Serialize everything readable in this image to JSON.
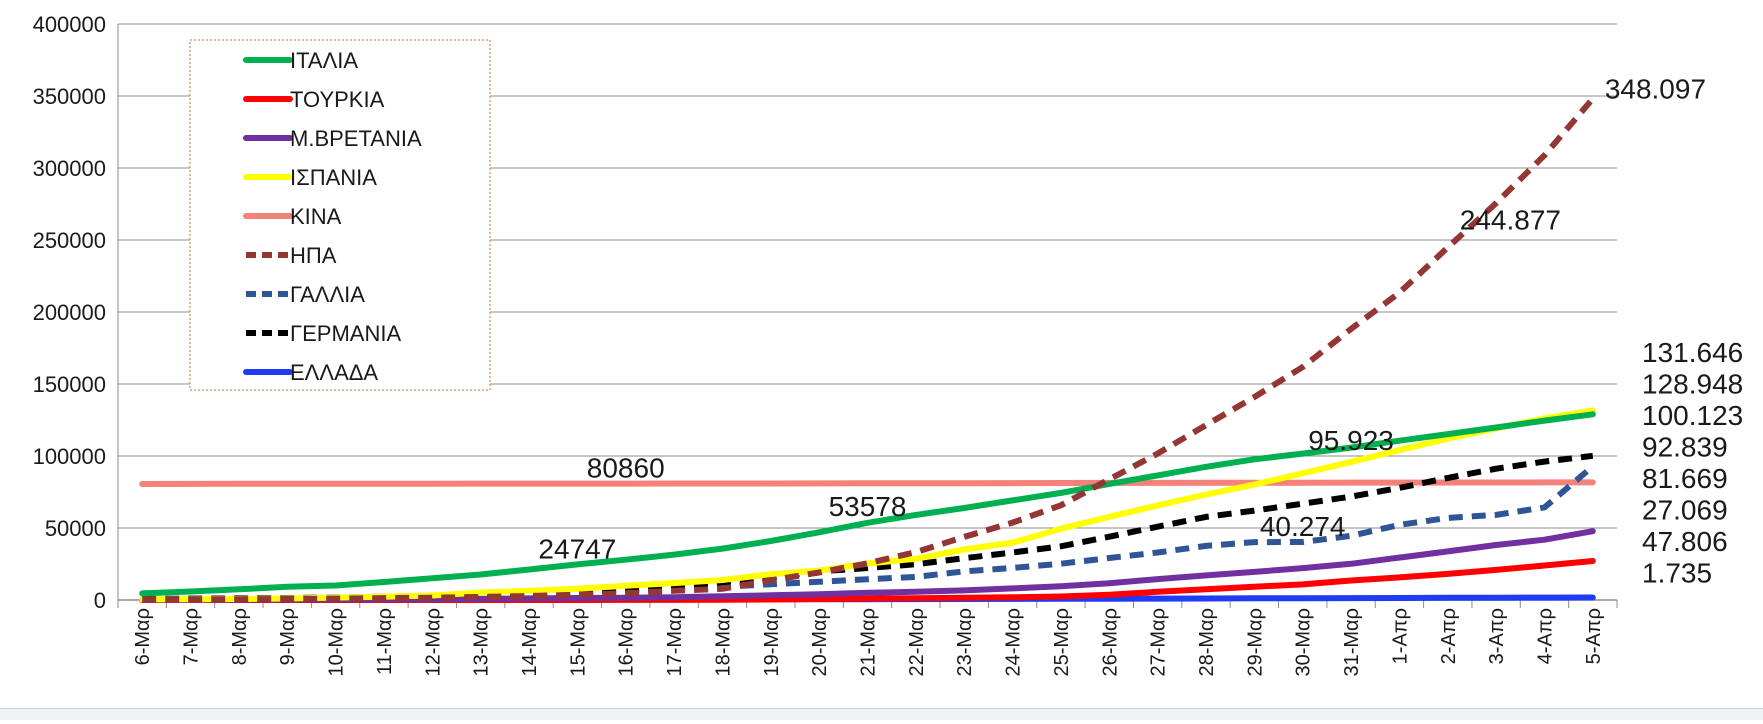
{
  "chart_data": {
    "type": "line",
    "title": "",
    "xlabel": "",
    "ylabel": "",
    "ylim": [
      0,
      400000
    ],
    "yticks": [
      "0",
      "50000",
      "100000",
      "150000",
      "200000",
      "250000",
      "300000",
      "350000",
      "400000"
    ],
    "grid": "horizontal",
    "legend_position": "top-left",
    "categories": [
      "6-Μαρ",
      "7-Μαρ",
      "8-Μαρ",
      "9-Μαρ",
      "10-Μαρ",
      "11-Μαρ",
      "12-Μαρ",
      "13-Μαρ",
      "14-Μαρ",
      "15-Μαρ",
      "16-Μαρ",
      "17-Μαρ",
      "18-Μαρ",
      "19-Μαρ",
      "20-Μαρ",
      "21-Μαρ",
      "22-Μαρ",
      "23-Μαρ",
      "24-Μαρ",
      "25-Μαρ",
      "26-Μαρ",
      "27-Μαρ",
      "28-Μαρ",
      "29-Μαρ",
      "30-Μαρ",
      "31-Μαρ",
      "1-Απρ",
      "2-Απρ",
      "3-Απρ",
      "4-Απρ",
      "5-Απρ"
    ],
    "series": [
      {
        "name": "ΙΤΑΛΙΑ",
        "color": "#00b050",
        "dash": "solid",
        "values": [
          4600,
          5900,
          7400,
          9200,
          10100,
          12500,
          15100,
          17700,
          21200,
          24747,
          27980,
          31500,
          35700,
          41000,
          47000,
          53578,
          59100,
          63900,
          69200,
          74400,
          80600,
          86500,
          92500,
          97700,
          101700,
          105800,
          110600,
          115200,
          119800,
          124600,
          128948
        ]
      },
      {
        "name": "ΤΟΥΡΚΙΑ",
        "color": "#ff0000",
        "dash": "solid",
        "values": [
          0,
          0,
          0,
          0,
          0,
          1,
          1,
          5,
          6,
          18,
          47,
          98,
          191,
          359,
          670,
          947,
          1236,
          1529,
          1872,
          2433,
          3629,
          5698,
          7402,
          9217,
          10827,
          13531,
          15679,
          18135,
          20921,
          23934,
          27069
        ]
      },
      {
        "name": "Μ.ΒΡΕΤΑΝΙΑ",
        "color": "#7030a0",
        "dash": "solid",
        "values": [
          164,
          206,
          273,
          321,
          382,
          456,
          590,
          798,
          1140,
          1391,
          1543,
          1950,
          2626,
          3269,
          3983,
          5018,
          5683,
          6650,
          8077,
          9529,
          11658,
          14543,
          17089,
          19522,
          22141,
          25150,
          29474,
          33718,
          38168,
          41903,
          47806
        ]
      },
      {
        "name": "ΙΣΠΑΝΙΑ",
        "color": "#ffff00",
        "dash": "solid",
        "values": [
          400,
          500,
          673,
          1073,
          1695,
          2277,
          3146,
          5232,
          6391,
          7798,
          9942,
          11748,
          13910,
          17963,
          20410,
          25374,
          28603,
          35136,
          39885,
          49515,
          57786,
          65719,
          73235,
          80110,
          87956,
          95923,
          104118,
          112065,
          119199,
          126168,
          131646
        ]
      },
      {
        "name": "ΚΙΝΑ",
        "color": "#f4817a",
        "dash": "solid",
        "values": [
          80552,
          80651,
          80695,
          80735,
          80754,
          80778,
          80793,
          80813,
          80824,
          80844,
          80860,
          80881,
          80894,
          80928,
          80967,
          81008,
          81054,
          81093,
          81171,
          81218,
          81285,
          81340,
          81394,
          81439,
          81470,
          81518,
          81554,
          81589,
          81620,
          81639,
          81669
        ]
      },
      {
        "name": "ΗΠΑ",
        "color": "#943634",
        "dash": "dashed",
        "values": [
          319,
          435,
          541,
          704,
          994,
          1301,
          1630,
          2183,
          2770,
          3613,
          4632,
          6421,
          7786,
          13680,
          19101,
          25493,
          33276,
          43847,
          53740,
          65778,
          83836,
          101657,
          121478,
          140886,
          161807,
          188172,
          213372,
          244877,
          275586,
          308850,
          348097
        ]
      },
      {
        "name": "ΓΑΛΛΙΑ",
        "color": "#2f5597",
        "dash": "dashed",
        "values": [
          653,
          949,
          1126,
          1412,
          1784,
          2281,
          2876,
          3661,
          4499,
          5423,
          6633,
          7730,
          9134,
          10995,
          12612,
          14459,
          16018,
          19856,
          22304,
          25233,
          29155,
          32964,
          37575,
          40174,
          40274,
          44550,
          52128,
          56989,
          59105,
          64338,
          92839
        ]
      },
      {
        "name": "ΓΕΡΜΑΝΙΑ",
        "color": "#000000",
        "dash": "dashed",
        "values": [
          670,
          799,
          1040,
          1176,
          1457,
          1908,
          2078,
          3675,
          4585,
          5795,
          7272,
          9257,
          12327,
          15320,
          19848,
          22213,
          24873,
          29056,
          32986,
          37323,
          43938,
          50871,
          57695,
          62095,
          66885,
          71808,
          77872,
          84794,
          91159,
          96092,
          100123
        ]
      },
      {
        "name": "ΕΛΛΑΔΑ",
        "color": "#1f3bf5",
        "dash": "solid",
        "values": [
          45,
          66,
          73,
          73,
          89,
          99,
          117,
          190,
          228,
          331,
          352,
          387,
          418,
          464,
          495,
          530,
          624,
          695,
          743,
          821,
          892,
          966,
          1061,
          1156,
          1212,
          1314,
          1415,
          1544,
          1613,
          1673,
          1735
        ]
      }
    ],
    "annotations": [
      {
        "text": "348.097",
        "anchor": {
          "x": "5-Απρ",
          "y": 348097
        }
      },
      {
        "text": "244.877",
        "anchor": {
          "x": "2-Απρ",
          "y": 244877
        }
      },
      {
        "text": "80860",
        "anchor": {
          "x": "16-Μαρ",
          "y": 80860
        }
      },
      {
        "text": "53578",
        "anchor": {
          "x": "21-Μαρ",
          "y": 53578
        }
      },
      {
        "text": "24747",
        "anchor": {
          "x": "15-Μαρ",
          "y": 24747
        }
      },
      {
        "text": "95.923",
        "anchor": {
          "x": "31-Μαρ",
          "y": 95923
        }
      },
      {
        "text": "40.274",
        "anchor": {
          "x": "30-Μαρ",
          "y": 40274
        }
      }
    ],
    "end_labels": [
      "131.646",
      "128.948",
      "100.123",
      "92.839",
      "81.669",
      "27.069",
      "47.806",
      "1.735"
    ]
  }
}
